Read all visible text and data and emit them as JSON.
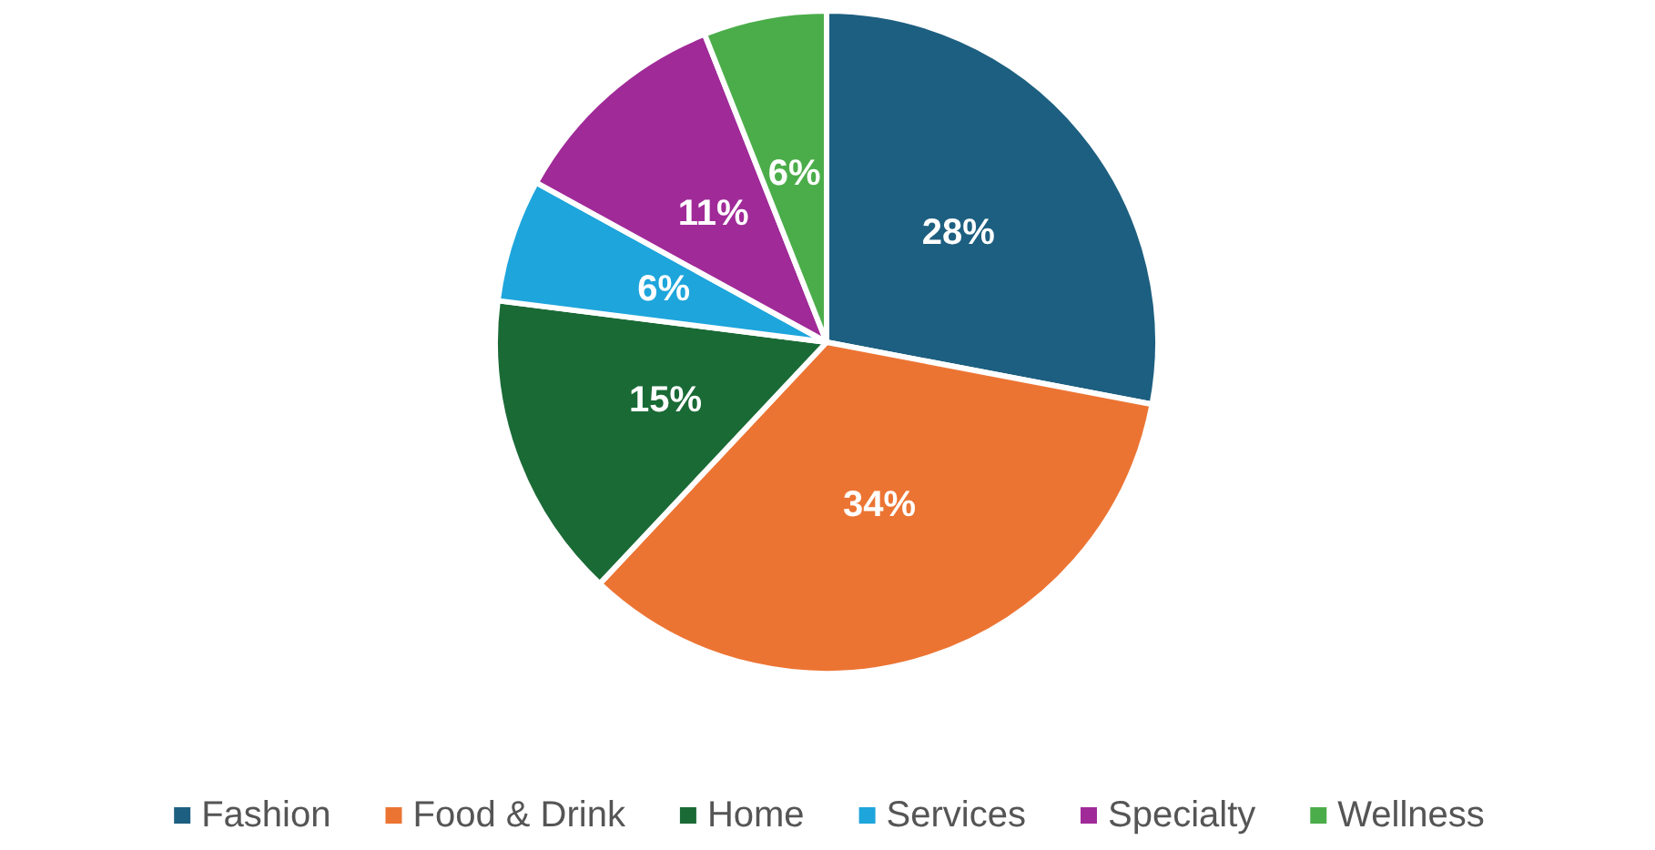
{
  "chart_data": {
    "type": "pie",
    "categories": [
      "Fashion",
      "Food & Drink",
      "Home",
      "Services",
      "Specialty",
      "Wellness"
    ],
    "values": [
      28,
      34,
      15,
      6,
      11,
      6
    ],
    "colors": [
      "#1d5f80",
      "#ec7433",
      "#1a6a36",
      "#1ea5dc",
      "#a02a98",
      "#4bad4a"
    ],
    "value_labels": [
      "28%",
      "34%",
      "15%",
      "6%",
      "11%",
      "6%"
    ],
    "legend": "bottom"
  }
}
